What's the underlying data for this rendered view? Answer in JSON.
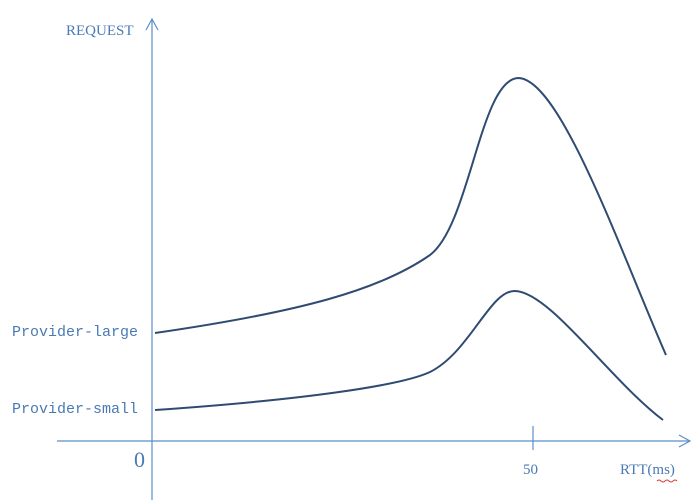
{
  "axes": {
    "y_label": "REQUEST",
    "x_label": "RTT(ms)",
    "origin": "0",
    "x_tick": "50"
  },
  "curves": [
    {
      "label": "Provider-large"
    },
    {
      "label": "Provider-small"
    }
  ]
}
